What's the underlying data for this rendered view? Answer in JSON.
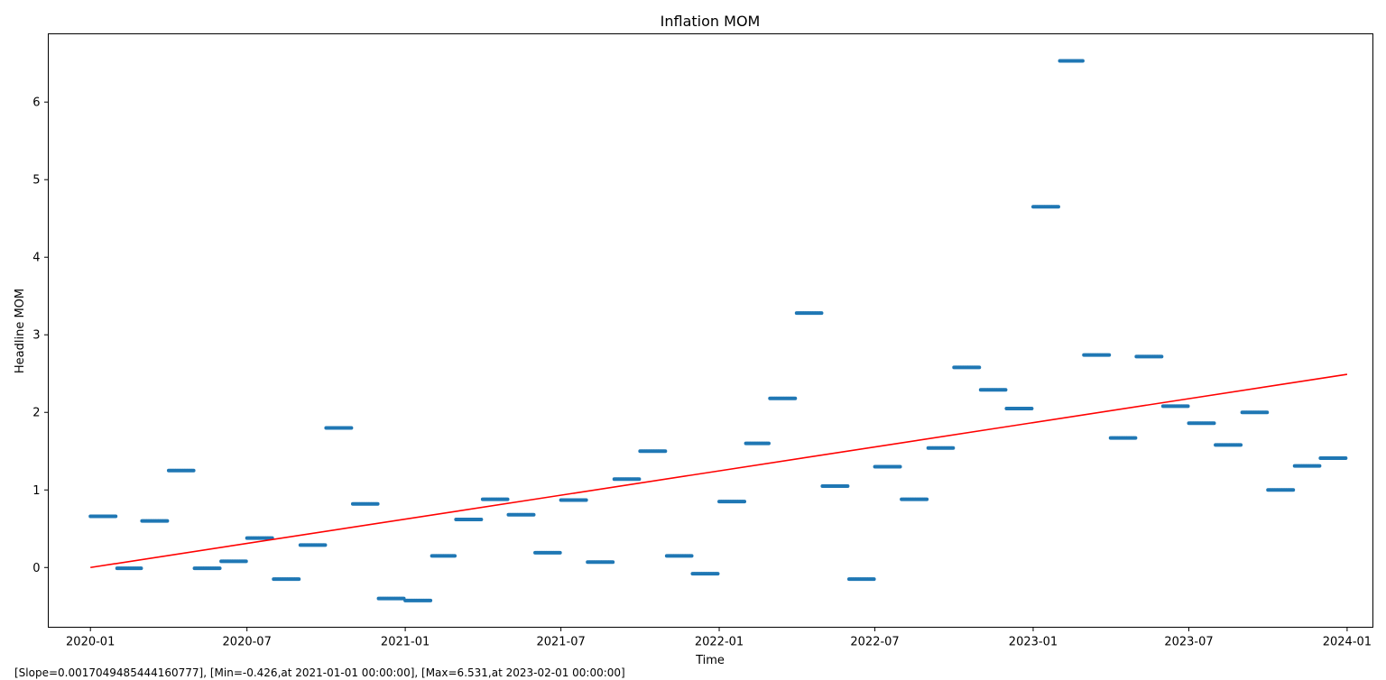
{
  "chart_data": {
    "type": "scatter",
    "title": "Inflation MOM",
    "xlabel": "Time",
    "ylabel": "Headline MOM",
    "x_range": [
      "2020-01-01",
      "2024-01-01"
    ],
    "xlim": [
      "2019-11-13",
      "2024-01-31"
    ],
    "ylim": [
      -0.77,
      6.88
    ],
    "x_ticks": [
      "2020-01",
      "2020-07",
      "2021-01",
      "2021-07",
      "2022-01",
      "2022-07",
      "2023-01",
      "2023-07",
      "2024-01"
    ],
    "y_ticks": [
      0,
      1,
      2,
      3,
      4,
      5,
      6
    ],
    "grid": false,
    "series": [
      {
        "color": "#1f77b4",
        "x": [
          "2020-01",
          "2020-02",
          "2020-03",
          "2020-04",
          "2020-05",
          "2020-06",
          "2020-07",
          "2020-08",
          "2020-09",
          "2020-10",
          "2020-11",
          "2020-12",
          "2021-01",
          "2021-02",
          "2021-03",
          "2021-04",
          "2021-05",
          "2021-06",
          "2021-07",
          "2021-08",
          "2021-09",
          "2021-10",
          "2021-11",
          "2021-12",
          "2022-01",
          "2022-02",
          "2022-03",
          "2022-04",
          "2022-05",
          "2022-06",
          "2022-07",
          "2022-08",
          "2022-09",
          "2022-10",
          "2022-11",
          "2022-12",
          "2023-01",
          "2023-02",
          "2023-03",
          "2023-04",
          "2023-05",
          "2023-06",
          "2023-07",
          "2023-08",
          "2023-09",
          "2023-10",
          "2023-11",
          "2023-12"
        ],
        "y": [
          0.66,
          -0.01,
          0.6,
          1.25,
          -0.01,
          0.08,
          0.38,
          -0.15,
          0.29,
          1.8,
          0.82,
          -0.4,
          -0.426,
          0.15,
          0.62,
          0.88,
          0.68,
          0.19,
          0.87,
          0.07,
          1.14,
          1.5,
          0.15,
          -0.08,
          0.85,
          1.6,
          2.18,
          3.28,
          1.05,
          -0.15,
          1.3,
          0.88,
          1.54,
          2.58,
          2.29,
          2.05,
          4.65,
          6.531,
          2.74,
          1.67,
          2.72,
          2.08,
          1.86,
          1.58,
          2.0,
          1.0,
          1.31,
          1.41
        ]
      }
    ],
    "trend": {
      "color": "#ff0000",
      "slope": 0.0017049485444160777,
      "y_start": 0.0,
      "y_end": 2.49
    }
  },
  "footer_text": "[Slope=0.0017049485444160777], [Min=-0.426,at 2021-01-01 00:00:00], [Max=6.531,at 2023-02-01 00:00:00]"
}
